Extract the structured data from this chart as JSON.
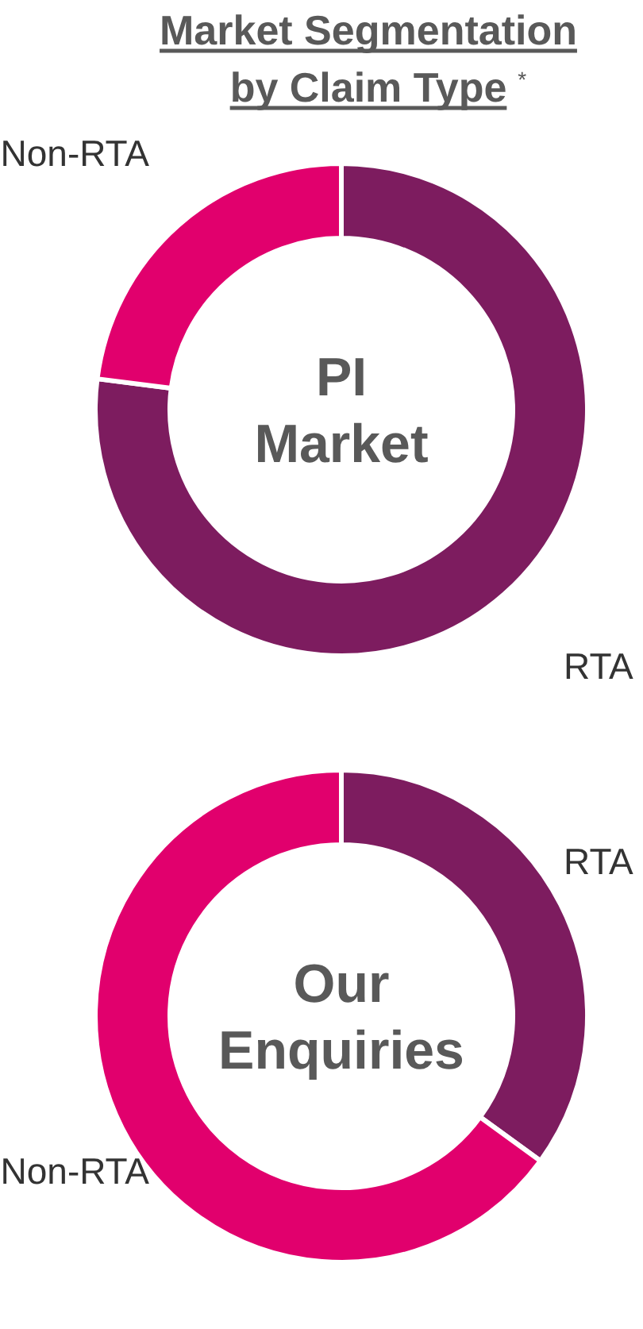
{
  "chart_data": [
    {
      "type": "donut",
      "title": "PI Market",
      "annotations": [
        "Market Segmentation by Claim Type",
        "*"
      ],
      "categories": [
        "RTA",
        "Non-RTA"
      ],
      "values": [
        77,
        23
      ],
      "colors": [
        "#7d1c5f",
        "#e1006d"
      ]
    },
    {
      "type": "donut",
      "title": "Our Enquiries",
      "categories": [
        "RTA",
        "Non-RTA"
      ],
      "values": [
        35,
        65
      ],
      "colors": [
        "#7d1c5f",
        "#e1006d"
      ]
    }
  ]
}
